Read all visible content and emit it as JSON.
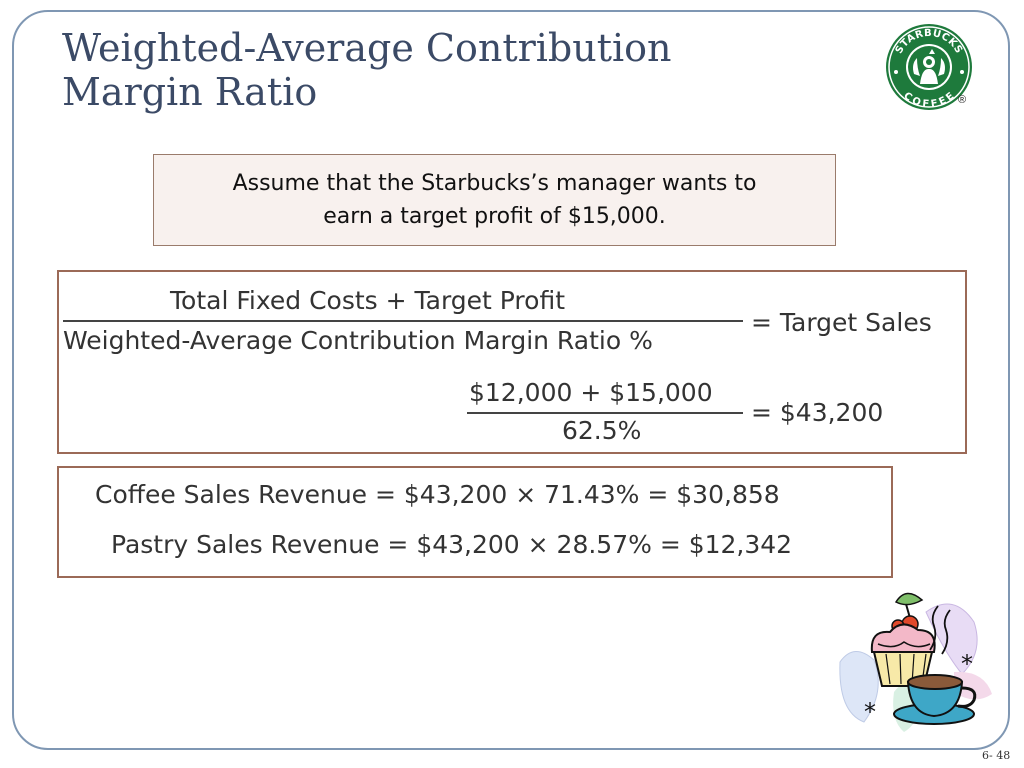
{
  "slide": {
    "title_line1": "Weighted-Average Contribution",
    "title_line2": "Margin Ratio",
    "assumption_line1": "Assume that the Starbucks’s manager wants to",
    "assumption_line2": "earn a target profit of $15,000.",
    "page_number": "6- 48"
  },
  "logo": {
    "top_text": "STARBUCKS",
    "bottom_text": "COFFEE",
    "registered_mark": "®",
    "brand_color": "#1e7a3c"
  },
  "formula": {
    "numerator": "Total Fixed Costs + Target Profit",
    "denominator": "Weighted-Average Contribution Margin Ratio %",
    "result_label": "= Target Sales",
    "calc_numerator": "$12,000 + $15,000",
    "calc_denominator": "62.5%",
    "calc_result": "= $43,200"
  },
  "revenues": {
    "coffee": "Coffee Sales Revenue = $43,200 × 71.43% = $30,858",
    "pastry": "Pastry Sales Revenue = $43,200 × 28.57% = $12,342"
  },
  "clipart": {
    "star_mark": "*"
  }
}
